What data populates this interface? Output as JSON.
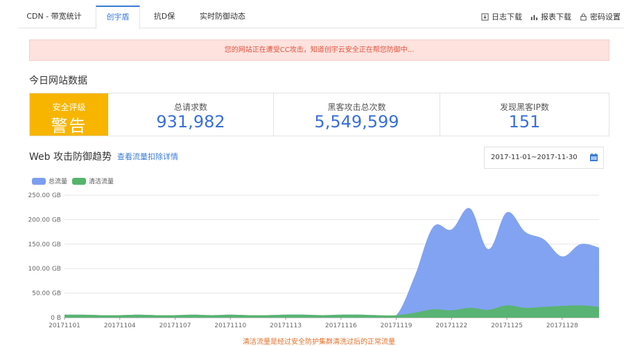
{
  "tabs": [
    {
      "label": "CDN - 带宽统计",
      "active": false
    },
    {
      "label": "创宇盾",
      "active": true
    },
    {
      "label": "抗D保",
      "active": false
    },
    {
      "label": "实时防御动态",
      "active": false
    }
  ],
  "toolbar": {
    "log_download": "日志下载",
    "report_download": "报表下载",
    "password_settings": "密码设置"
  },
  "alert": {
    "text": "您的网站正在遭受CC攻击，知道创宇云安全正在帮您防御中..."
  },
  "today": {
    "title": "今日网站数据",
    "rating": {
      "label": "安全评级",
      "value": "警告",
      "color": "#f7b500"
    },
    "stats": [
      {
        "label": "总请求数",
        "value": "931,982"
      },
      {
        "label": "黑客攻击总次数",
        "value": "5,549,599"
      },
      {
        "label": "发现黑客IP数",
        "value": "151"
      }
    ]
  },
  "trend": {
    "title": "Web 攻击防御趋势",
    "detail_link": "查看流量扣除详情",
    "date_range": "2017-11-01~2017-11-30",
    "footnote": "清洁流量是经过安全防护集群清洗过后的正常流量"
  },
  "chart_data": {
    "type": "area",
    "legend": [
      {
        "name": "总流量",
        "color": "#7b9ef0"
      },
      {
        "name": "清洁流量",
        "color": "#56b46a"
      }
    ],
    "y_ticks": [
      "0 B",
      "50.00 GB",
      "100.00 GB",
      "150.00 GB",
      "200.00 GB",
      "250.00 GB"
    ],
    "ylim": [
      0,
      250
    ],
    "y_unit": "GB",
    "x_tick_labels": [
      "20171101",
      "20171104",
      "20171107",
      "20171110",
      "20171113",
      "20171116",
      "20171119",
      "20171122",
      "20171125",
      "20171128"
    ],
    "x": [
      "20171101",
      "20171102",
      "20171103",
      "20171104",
      "20171105",
      "20171106",
      "20171107",
      "20171108",
      "20171109",
      "20171110",
      "20171111",
      "20171112",
      "20171113",
      "20171114",
      "20171115",
      "20171116",
      "20171117",
      "20171118",
      "20171119",
      "20171120",
      "20171121",
      "20171122",
      "20171123",
      "20171124",
      "20171125",
      "20171126",
      "20171127",
      "20171128",
      "20171129",
      "20171130"
    ],
    "series": [
      {
        "name": "总流量",
        "values": [
          6,
          6,
          5,
          5,
          6,
          5,
          5,
          6,
          5,
          6,
          5,
          5,
          6,
          6,
          5,
          6,
          6,
          5,
          5,
          85,
          185,
          180,
          223,
          140,
          215,
          175,
          160,
          125,
          150,
          143
        ]
      },
      {
        "name": "清洁流量",
        "values": [
          6,
          6,
          5,
          5,
          6,
          5,
          5,
          6,
          5,
          6,
          5,
          5,
          6,
          6,
          5,
          6,
          6,
          5,
          5,
          10,
          17,
          15,
          20,
          16,
          25,
          20,
          22,
          24,
          25,
          22
        ]
      }
    ],
    "grid": true
  }
}
